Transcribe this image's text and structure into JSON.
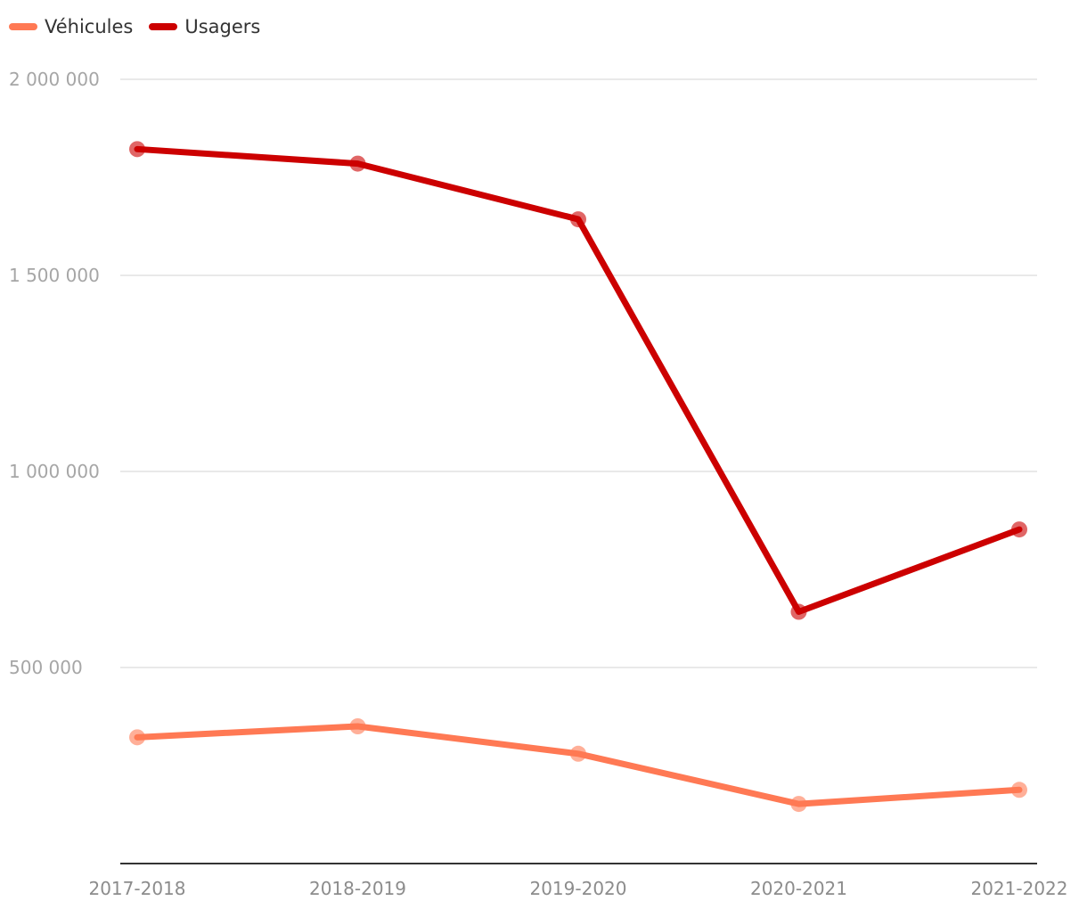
{
  "chart_data": {
    "type": "line",
    "categories": [
      "2017-2018",
      "2018-2019",
      "2019-2020",
      "2020-2021",
      "2021-2022"
    ],
    "ylim": [
      0,
      2000000
    ],
    "yticks": [
      500000,
      1000000,
      1500000,
      2000000
    ],
    "ytick_labels": [
      "500 000",
      "1 000 000",
      "1 500 000",
      "2 000 000"
    ],
    "grid": true,
    "legend_position": "top-left",
    "series": [
      {
        "name": "Véhicules",
        "color": "#ff7954",
        "values": [
          322000,
          350000,
          280000,
          152000,
          188000
        ]
      },
      {
        "name": "Usagers",
        "color": "#cc0000",
        "values": [
          1822000,
          1785000,
          1643000,
          642000,
          852000
        ]
      }
    ]
  }
}
